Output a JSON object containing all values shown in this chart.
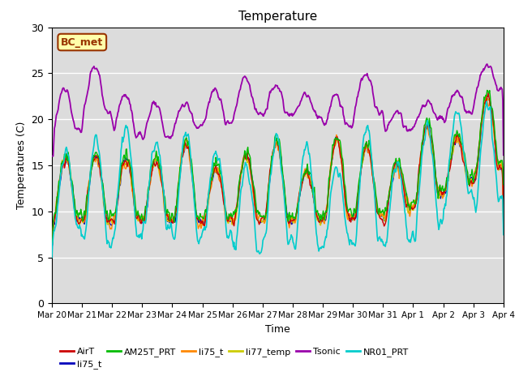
{
  "title": "Temperature",
  "xlabel": "Time",
  "ylabel": "Temperatures (C)",
  "ylim": [
    0,
    30
  ],
  "background_color": "#dcdcdc",
  "series_colors": {
    "AirT": "#cc0000",
    "li75_b": "#0000bb",
    "AM25T_PRT": "#00bb00",
    "li75_o": "#ff8800",
    "li77_temp": "#cccc00",
    "Tsonic": "#9900aa",
    "NR01_PRT": "#00cccc"
  },
  "legend_labels": [
    "AirT",
    "li75_t",
    "AM25T_PRT",
    "li75_t",
    "li77_temp",
    "Tsonic",
    "NR01_PRT"
  ],
  "legend_colors": [
    "#cc0000",
    "#0000bb",
    "#00bb00",
    "#ff8800",
    "#cccc00",
    "#9900aa",
    "#00cccc"
  ],
  "annotation_text": "BC_met",
  "annotation_bg": "#ffffaa",
  "annotation_border": "#993300",
  "xtick_labels": [
    "Mar 20",
    "Mar 21",
    "Mar 22",
    "Mar 23",
    "Mar 24",
    "Mar 25",
    "Mar 26",
    "Mar 27",
    "Mar 28",
    "Mar 29",
    "Mar 30",
    "Mar 31",
    "Apr 1",
    "Apr 2",
    "Apr 3",
    "Apr 4"
  ],
  "ytick_labels": [
    0,
    5,
    10,
    15,
    20,
    25,
    30
  ]
}
